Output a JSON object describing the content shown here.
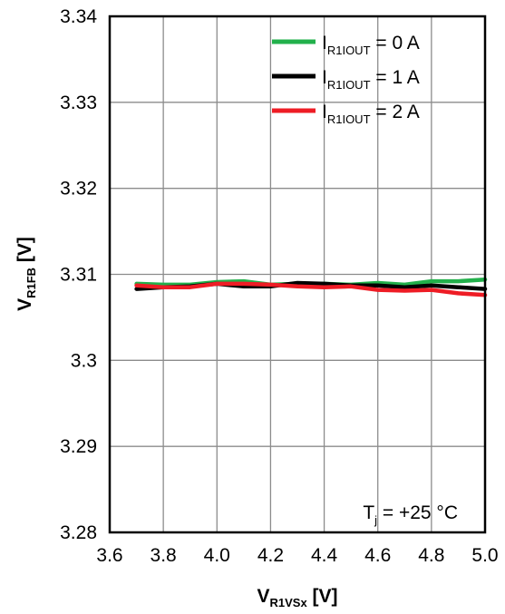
{
  "chart_data": {
    "type": "line",
    "xlabel": {
      "main": "V",
      "sub": "R1VSx",
      "unit": " [V]"
    },
    "ylabel": {
      "main": "V",
      "sub": "R1FB",
      "unit": " [V]"
    },
    "xlim": [
      3.6,
      5.0
    ],
    "ylim": [
      3.28,
      3.34
    ],
    "x_ticks": [
      3.6,
      3.8,
      4.0,
      4.2,
      4.4,
      4.6,
      4.8,
      5.0
    ],
    "x_tick_labels": [
      "3.6",
      "3.8",
      "4.0",
      "4.2",
      "4.4",
      "4.6",
      "4.8",
      "5.0"
    ],
    "y_ticks": [
      3.28,
      3.29,
      3.3,
      3.31,
      3.32,
      3.33,
      3.34
    ],
    "y_tick_labels": [
      "3.28",
      "3.29",
      "3.3",
      "3.31",
      "3.32",
      "3.33",
      "3.34"
    ],
    "grid": true,
    "legend_position": "top-right",
    "series": [
      {
        "name": {
          "main": "I",
          "sub": "R1IOUT",
          "rest": " = 0 A"
        },
        "color": "#22b04b",
        "x": [
          3.7,
          3.8,
          3.9,
          4.0,
          4.1,
          4.2,
          4.3,
          4.4,
          4.5,
          4.6,
          4.7,
          4.8,
          4.9,
          5.0
        ],
        "y": [
          3.3089,
          3.3088,
          3.3088,
          3.3091,
          3.3092,
          3.3088,
          3.3089,
          3.3089,
          3.3088,
          3.309,
          3.3088,
          3.3092,
          3.3092,
          3.3094
        ]
      },
      {
        "name": {
          "main": "I",
          "sub": "R1IOUT",
          "rest": " = 1 A"
        },
        "color": "#000000",
        "x": [
          3.7,
          3.8,
          3.9,
          4.0,
          4.1,
          4.2,
          4.3,
          4.4,
          4.5,
          4.6,
          4.7,
          4.8,
          4.9,
          5.0
        ],
        "y": [
          3.3083,
          3.3085,
          3.3086,
          3.3089,
          3.3086,
          3.3086,
          3.309,
          3.3089,
          3.3087,
          3.3087,
          3.3085,
          3.3087,
          3.3085,
          3.3083
        ]
      },
      {
        "name": {
          "main": "I",
          "sub": "R1IOUT",
          "rest": " = 2 A"
        },
        "color": "#ee1c25",
        "x": [
          3.7,
          3.8,
          3.9,
          4.0,
          4.1,
          4.2,
          4.3,
          4.4,
          4.5,
          4.6,
          4.7,
          4.8,
          4.9,
          5.0
        ],
        "y": [
          3.3087,
          3.3085,
          3.3085,
          3.3089,
          3.3089,
          3.3088,
          3.3086,
          3.3085,
          3.3086,
          3.3082,
          3.3081,
          3.3082,
          3.3078,
          3.3076
        ]
      }
    ],
    "annotation": {
      "main": "T",
      "sub": "j",
      "rest": " = +25 °C"
    }
  }
}
